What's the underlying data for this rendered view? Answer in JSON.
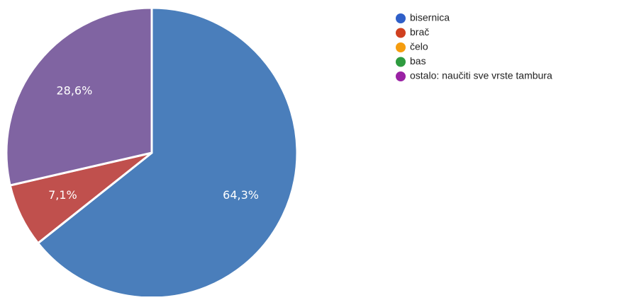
{
  "chart_data": {
    "type": "pie",
    "labels": [
      "bisernica",
      "brač",
      "čelo",
      "bas",
      "ostalo: naučiti sve vrste tambura"
    ],
    "values": [
      64.3,
      7.1,
      0,
      0,
      28.6
    ],
    "value_labels": [
      "64,3%",
      "7,1%",
      "",
      "",
      "28,6%"
    ],
    "colors": [
      "#4a7ebb",
      "#c0504d",
      "#f59d0f",
      "#2e9b3f",
      "#8064a2"
    ],
    "legend_colors": [
      "#2f5fc8",
      "#d04020",
      "#f59d0f",
      "#2e9b3f",
      "#9a22a4"
    ],
    "legend_position": "right",
    "start_angle_deg": 0,
    "direction": "clockwise"
  }
}
